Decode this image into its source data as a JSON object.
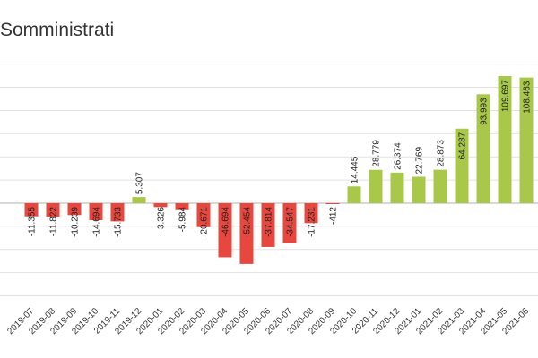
{
  "chart_data": {
    "type": "bar",
    "title": "Somministrati",
    "xlabel": "",
    "ylabel": "",
    "ylim": [
      -65000,
      115000
    ],
    "grid": true,
    "categories": [
      "2019-07",
      "2019-08",
      "2019-09",
      "2019-10",
      "2019-11",
      "2019-12",
      "2020-01",
      "2020-02",
      "2020-03",
      "2020-04",
      "2020-05",
      "2020-06",
      "2020-07",
      "2020-08",
      "2020-09",
      "2020-10",
      "2020-11",
      "2020-12",
      "2021-01",
      "2021-02",
      "2021-03",
      "2021-04",
      "2021-05",
      "2021-06"
    ],
    "values": [
      -11355,
      -11822,
      -10239,
      -14694,
      -15733,
      5307,
      -3326,
      -5984,
      -20671,
      -46694,
      -52454,
      -37814,
      -34547,
      -17231,
      -412,
      14445,
      28779,
      26374,
      22769,
      28873,
      64287,
      93993,
      109697,
      108463
    ],
    "labels": [
      "-11.355",
      "-11.822",
      "-10.239",
      "-14.694",
      "-15.733",
      "5.307",
      "-3.326",
      "-5.984",
      "-20.671",
      "-46.694",
      "-52.454",
      "-37.814",
      "-34.547",
      "-17.231",
      "-412",
      "14.445",
      "28.779",
      "26.374",
      "22.769",
      "28.873",
      "64.287",
      "93.993",
      "109.697",
      "108.463"
    ],
    "colors": {
      "positive": "#a8c84a",
      "negative": "#e8473f"
    }
  }
}
